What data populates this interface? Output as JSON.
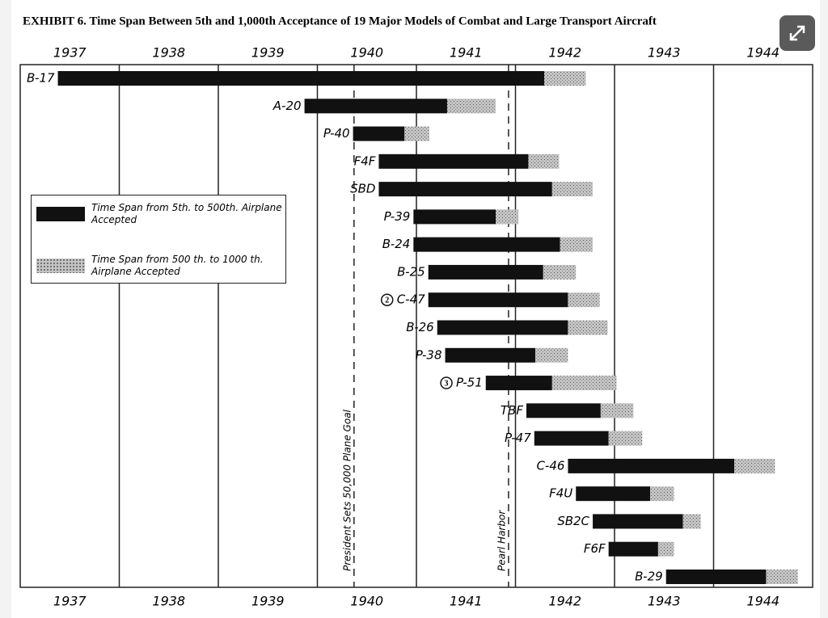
{
  "chart_data": {
    "type": "gantt",
    "title": "EXHIBIT 6. Time Span Between 5th and 1,000th Acceptance of 19 Major Models of Combat and Large Transport Aircraft",
    "categories": [
      "B-17",
      "A-20",
      "P-40",
      "F4F",
      "SBD",
      "P-39",
      "B-24",
      "B-25",
      "C-47",
      "B-26",
      "P-38",
      "P-51",
      "TBF",
      "P-47",
      "C-46",
      "F4U",
      "SB2C",
      "F6F",
      "B-29"
    ],
    "markers": [
      null,
      null,
      null,
      null,
      null,
      null,
      null,
      null,
      "2",
      null,
      null,
      "3",
      null,
      null,
      null,
      null,
      null,
      null,
      null
    ],
    "start": [
      1937.38,
      1939.87,
      1940.36,
      1940.62,
      1940.62,
      1940.97,
      1940.97,
      1941.12,
      1941.12,
      1941.21,
      1941.29,
      1941.7,
      1942.11,
      1942.19,
      1942.53,
      1942.61,
      1942.78,
      1942.94,
      1943.52
    ],
    "mid": [
      1942.29,
      1941.31,
      1940.88,
      1942.13,
      1942.37,
      1941.8,
      1942.45,
      1942.28,
      1942.53,
      1942.53,
      1942.2,
      1942.37,
      1942.86,
      1942.94,
      1944.21,
      1943.36,
      1943.69,
      1943.44,
      1944.53
    ],
    "end": [
      1942.71,
      1941.8,
      1941.13,
      1942.44,
      1942.78,
      1942.03,
      1942.78,
      1942.61,
      1942.85,
      1942.93,
      1942.53,
      1943.02,
      1943.19,
      1943.28,
      1944.62,
      1943.6,
      1943.87,
      1943.6,
      1944.85
    ],
    "series": [
      {
        "name": "Time Span from 5th. to 500th. Airplane Accepted",
        "color": "#111111"
      },
      {
        "name": "Time Span from 500 th. to 1000 th. Airplane Accepted",
        "color": "#c4c4c4"
      }
    ],
    "xlim": [
      1937,
      1945
    ],
    "xticks": [
      {
        "value": 1937.5,
        "label": "1937"
      },
      {
        "value": 1938.5,
        "label": "1938"
      },
      {
        "value": 1939.5,
        "label": "1939"
      },
      {
        "value": 1940.5,
        "label": "1940"
      },
      {
        "value": 1941.5,
        "label": "1941"
      },
      {
        "value": 1942.5,
        "label": "1942"
      },
      {
        "value": 1943.5,
        "label": "1943"
      },
      {
        "value": 1944.5,
        "label": "1944"
      }
    ],
    "events": [
      {
        "x": 1940.37,
        "label": "President Sets 50,000 Plane Goal"
      },
      {
        "x": 1941.93,
        "label": "Pearl Harbor"
      }
    ],
    "grid": true
  }
}
